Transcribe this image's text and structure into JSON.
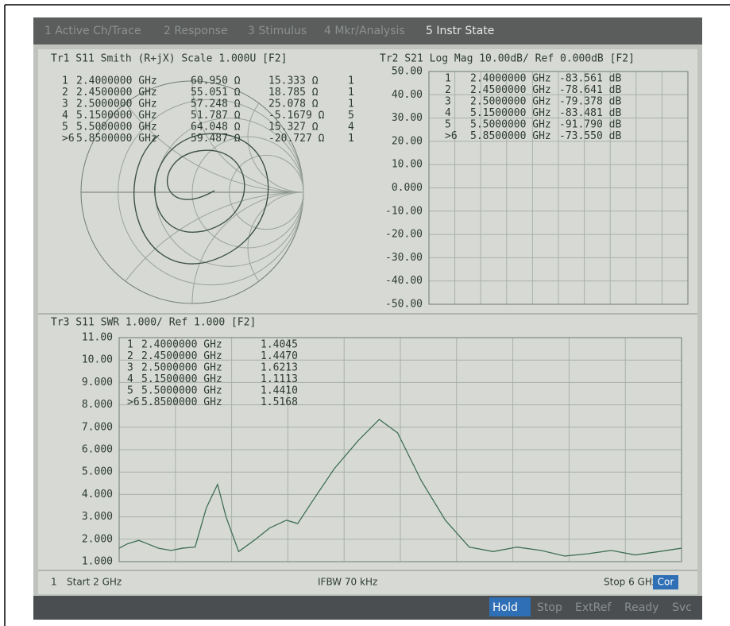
{
  "menu": [
    "1 Active Ch/Trace",
    "2 Response",
    "3 Stimulus",
    "4 Mkr/Analysis",
    "5 Instr State"
  ],
  "chart_data": [
    {
      "type": "smith",
      "title": "Tr1 S11 Smith (R+jX) Scale 1.000U [F2]",
      "markers": [
        [
          "1",
          "2.4000000 GHz",
          "60.950 Ω",
          "15.333 Ω",
          "1"
        ],
        [
          "2",
          "2.4500000 GHz",
          "55.051 Ω",
          "18.785 Ω",
          "1"
        ],
        [
          "3",
          "2.5000000 GHz",
          "57.248 Ω",
          "25.078 Ω",
          "1"
        ],
        [
          "4",
          "5.1500000 GHz",
          "51.787 Ω",
          "-5.1679 Ω",
          "5"
        ],
        [
          "5",
          "5.5000000 GHz",
          "64.048 Ω",
          "15.327 Ω",
          "4"
        ],
        [
          ">6",
          "5.8500000 GHz",
          "59.487 Ω",
          "-20.727 Ω",
          "1"
        ]
      ]
    },
    {
      "type": "line",
      "title": "Tr2 S21 Log Mag 10.00dB/ Ref 0.000dB [F2]",
      "ylim": [
        -50,
        50
      ],
      "yticks": [
        {
          "value": 50,
          "label": "50.00"
        },
        {
          "value": 40,
          "label": "40.00"
        },
        {
          "value": 30,
          "label": "30.00"
        },
        {
          "value": 20,
          "label": "20.00"
        },
        {
          "value": 10,
          "label": "10.00"
        },
        {
          "value": 0,
          "label": "0.000"
        },
        {
          "value": -10,
          "label": "-10.00"
        },
        {
          "value": -20,
          "label": "-20.00"
        },
        {
          "value": -30,
          "label": "-30.00"
        },
        {
          "value": -40,
          "label": "-40.00"
        },
        {
          "value": -50,
          "label": "-50.00"
        }
      ],
      "markers": [
        [
          "1",
          "2.4000000 GHz",
          "-83.561 dB"
        ],
        [
          "2",
          "2.4500000 GHz",
          "-78.641 dB"
        ],
        [
          "3",
          "2.5000000 GHz",
          "-79.378 dB"
        ],
        [
          "4",
          "5.1500000 GHz",
          "-83.481 dB"
        ],
        [
          "5",
          "5.5000000 GHz",
          "-91.790 dB"
        ],
        [
          ">6",
          "5.8500000 GHz",
          "-73.550 dB"
        ]
      ]
    },
    {
      "type": "line",
      "title": "Tr3 S11 SWR 1.000/ Ref 1.000 [F2]",
      "xlim": [
        2,
        6
      ],
      "ylim": [
        1,
        11
      ],
      "yticks": [
        {
          "value": 11,
          "label": "11.00"
        },
        {
          "value": 10,
          "label": "10.00"
        },
        {
          "value": 9,
          "label": "9.000"
        },
        {
          "value": 8,
          "label": "8.000"
        },
        {
          "value": 7,
          "label": "7.000"
        },
        {
          "value": 6,
          "label": "6.000"
        },
        {
          "value": 5,
          "label": "5.000"
        },
        {
          "value": 4,
          "label": "4.000"
        },
        {
          "value": 3,
          "label": "3.000"
        },
        {
          "value": 2,
          "label": "2.000"
        },
        {
          "value": 1,
          "label": "1.000"
        }
      ],
      "x": [
        2.0,
        2.06,
        2.14,
        2.2,
        2.28,
        2.37,
        2.45,
        2.54,
        2.62,
        2.7,
        2.76,
        2.85,
        2.96,
        3.07,
        3.19,
        3.27,
        3.38,
        3.53,
        3.7,
        3.85,
        3.98,
        4.15,
        4.32,
        4.49,
        4.66,
        4.83,
        5.0,
        5.17,
        5.33,
        5.5,
        5.67,
        5.84,
        6.0
      ],
      "series": [
        {
          "color": "#3f6f55",
          "values": [
            1.6,
            1.8,
            1.95,
            1.8,
            1.6,
            1.5,
            1.6,
            1.65,
            3.4,
            4.45,
            3.0,
            1.45,
            1.95,
            2.5,
            2.85,
            2.7,
            3.75,
            5.15,
            6.4,
            7.35,
            6.75,
            4.6,
            2.85,
            1.65,
            1.45,
            1.65,
            1.5,
            1.25,
            1.35,
            1.5,
            1.3,
            1.45,
            1.6
          ]
        }
      ],
      "markers": [
        [
          "1",
          "2.4000000 GHz",
          "1.4045"
        ],
        [
          "2",
          "2.4500000 GHz",
          "1.4470"
        ],
        [
          "3",
          "2.5000000 GHz",
          "1.6213"
        ],
        [
          "4",
          "5.1500000 GHz",
          "1.1113"
        ],
        [
          "5",
          "5.5000000 GHz",
          "1.4410"
        ],
        [
          ">6",
          "5.8500000 GHz",
          "1.5168"
        ]
      ]
    }
  ],
  "status": {
    "channel": "1",
    "start": "Start 2 GHz",
    "ifbw": "IFBW 70 kHz",
    "stop": "Stop 6 GHz",
    "cor": "Cor"
  },
  "buttons": [
    "Hold",
    "Stop",
    "ExtRef",
    "Ready",
    "Svc"
  ]
}
